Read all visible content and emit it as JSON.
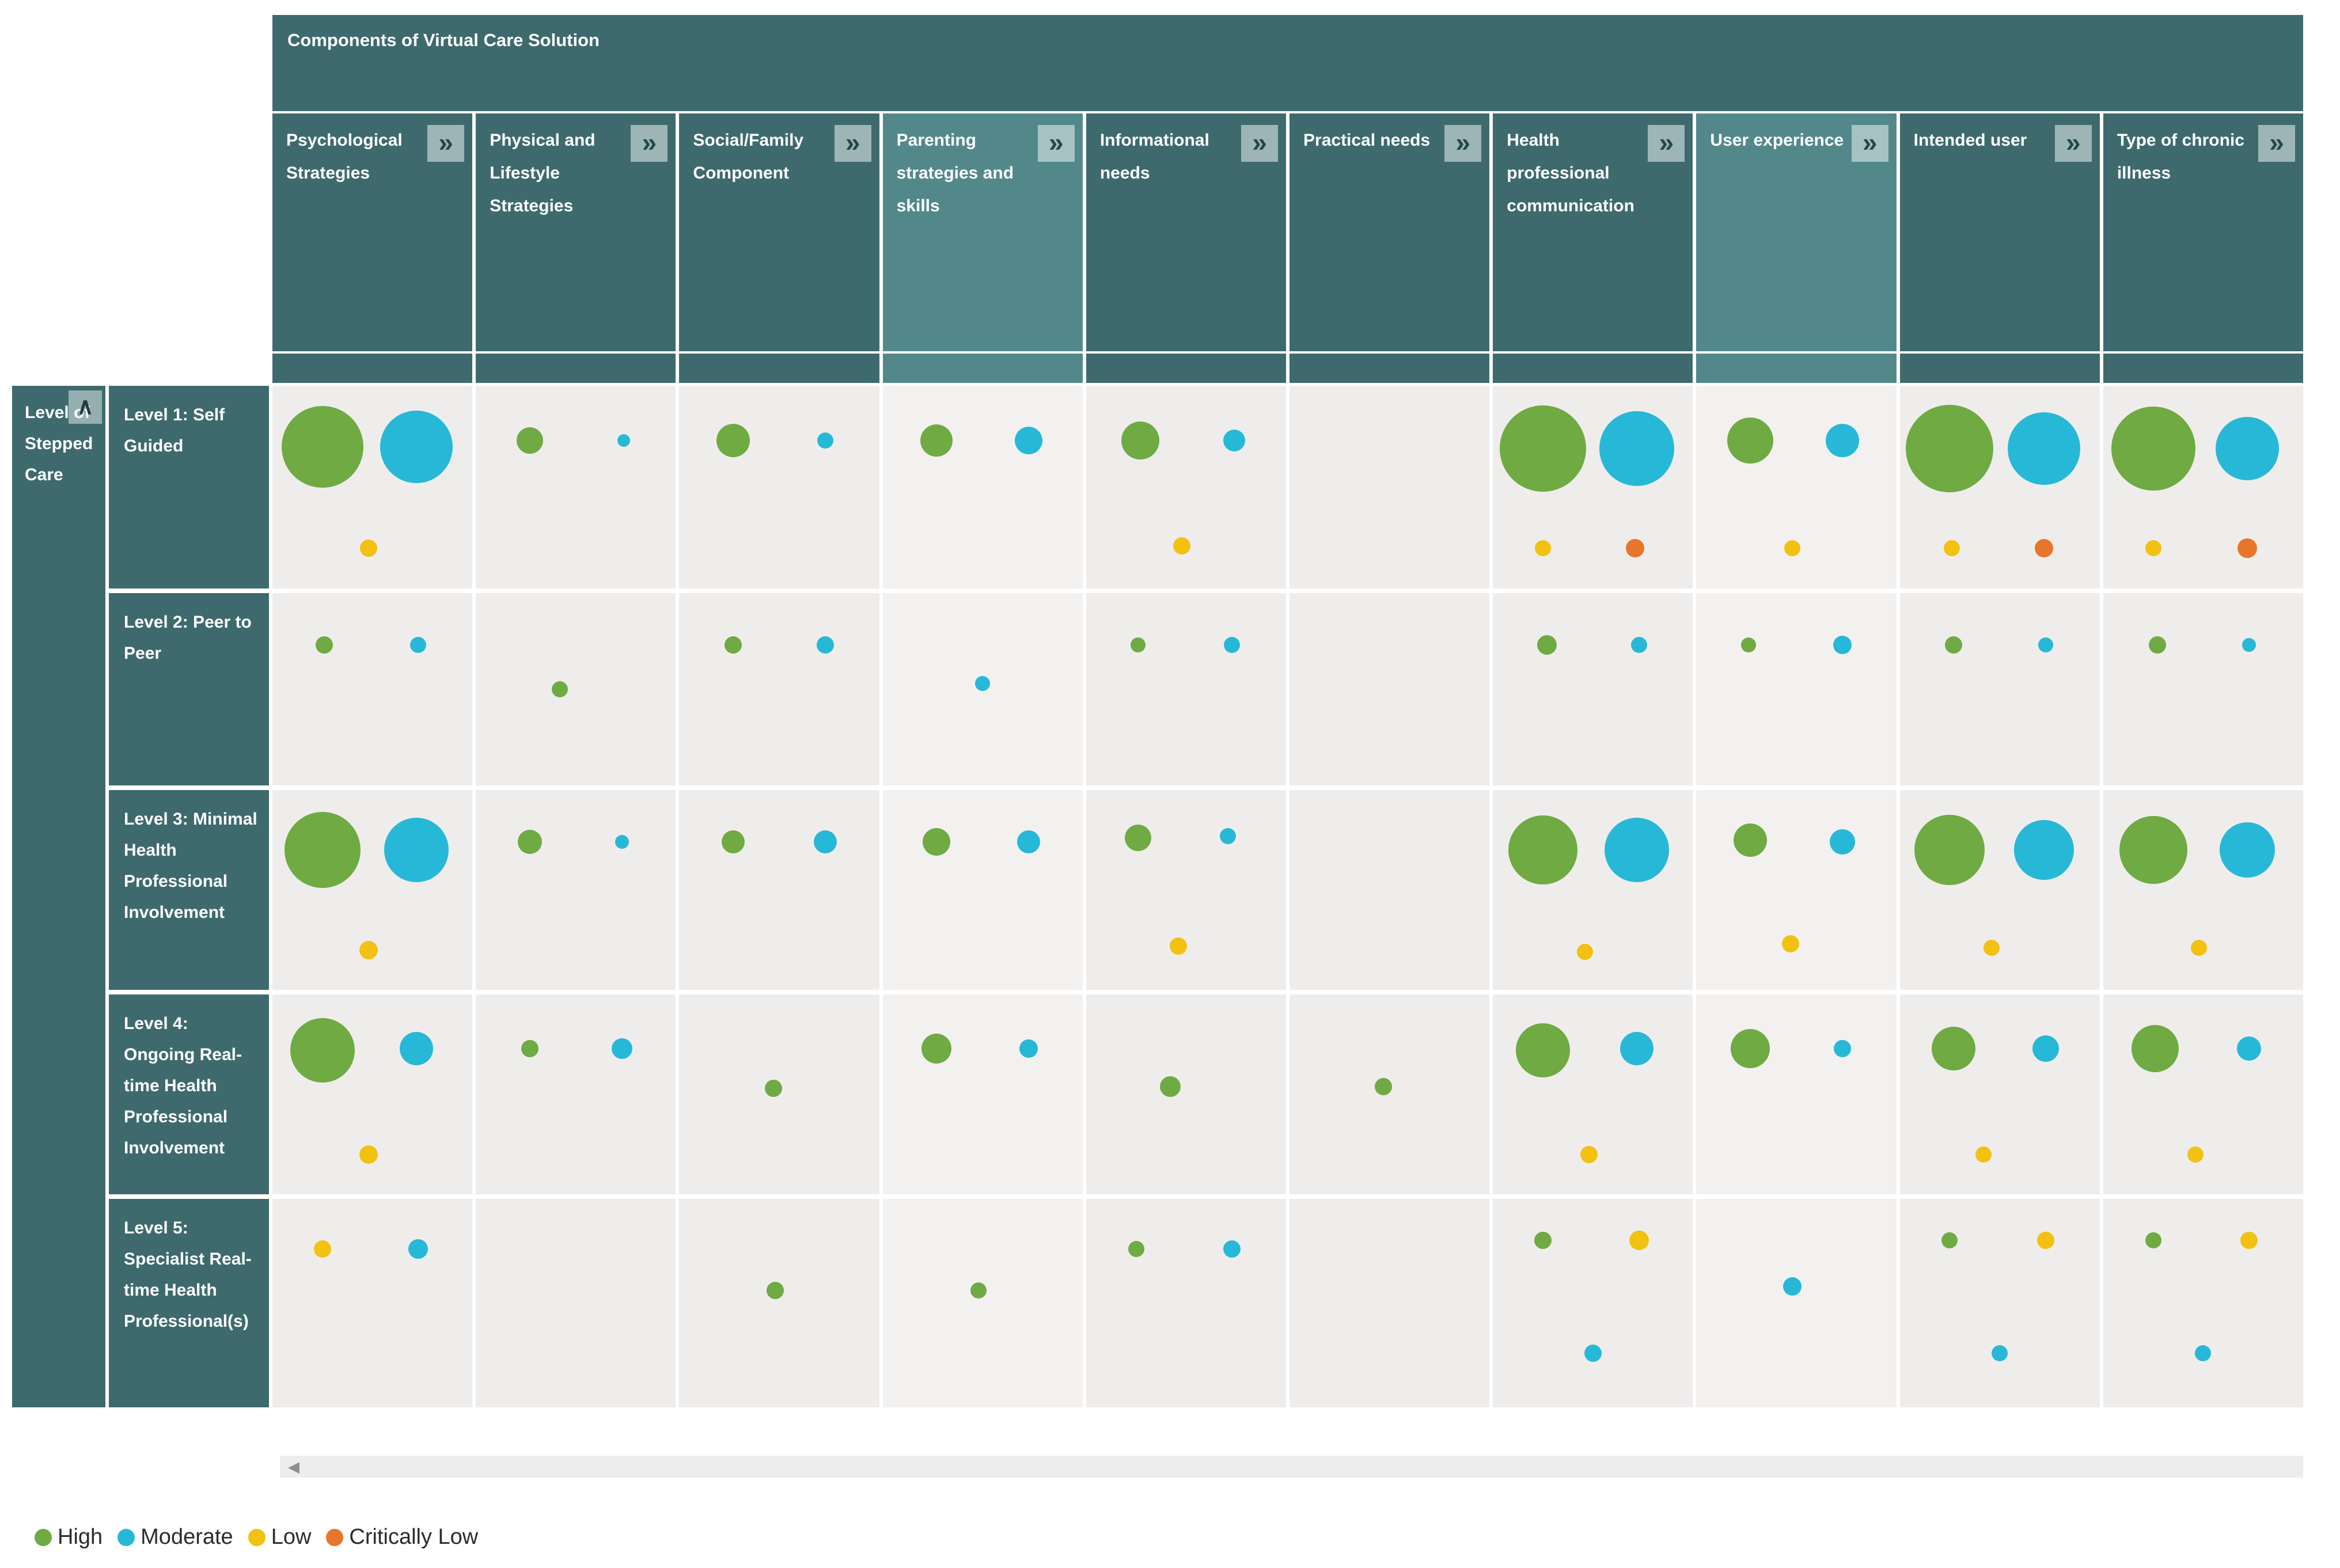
{
  "banner": {
    "title": "Components of Virtual Care Solution"
  },
  "row_axis_title": "Level of Stepped Care",
  "icons": {
    "expand_column": "»",
    "collapse_rows": "∧",
    "scroll_left_arrow": "◀"
  },
  "colors": {
    "high": "#6faa43",
    "moderate": "#27b8d8",
    "low": "#f2c112",
    "critically_low": "#e8752c",
    "header": "#3e6a6d",
    "header_selected": "#53888b",
    "cell": "#efedec",
    "cell_selected": "#f3f1ef"
  },
  "legend": [
    {
      "key": "high",
      "label": "High"
    },
    {
      "key": "moderate",
      "label": "Moderate"
    },
    {
      "key": "low",
      "label": "Low"
    },
    {
      "key": "critically_low",
      "label": "Critically Low"
    }
  ],
  "chart_data": {
    "type": "bubble-matrix",
    "title": "Components of Virtual Care Solution",
    "row_axis": "Level of Stepped Care",
    "legend_position": "bottom-left",
    "size_encoding": "bubble diameter = relative number of solutions; color = evidence rating (High, Moderate, Low, Critically Low)",
    "columns": [
      {
        "label": "Psychological Strategies",
        "selected": false
      },
      {
        "label": "Physical and Lifestyle Strategies",
        "selected": false
      },
      {
        "label": "Social/Family Component",
        "selected": false
      },
      {
        "label": "Parenting strategies and skills",
        "selected": true
      },
      {
        "label": "Informational needs",
        "selected": false
      },
      {
        "label": "Practical needs",
        "selected": false
      },
      {
        "label": "Health professional communication",
        "selected": false
      },
      {
        "label": "User experience",
        "selected": true
      },
      {
        "label": "Intended user",
        "selected": false
      },
      {
        "label": "Type of chronic illness",
        "selected": false
      }
    ],
    "rows": [
      "Level 1: Self Guided",
      "Level 2: Peer to Peer",
      "Level 3: Minimal Health Professional Involvement",
      "Level 4: Ongoing Real-time Health Professional Involvement",
      "Level 5: Specialist Real-time Health Professional(s)"
    ],
    "cells": [
      {
        "row": 0,
        "col": 0,
        "dots": [
          {
            "rating": "high",
            "x": 25,
            "y": 30,
            "d": 142
          },
          {
            "rating": "moderate",
            "x": 72,
            "y": 30,
            "d": 126
          },
          {
            "rating": "low",
            "x": 48,
            "y": 80,
            "d": 30
          }
        ]
      },
      {
        "row": 0,
        "col": 1,
        "dots": [
          {
            "rating": "high",
            "x": 27,
            "y": 27,
            "d": 46
          },
          {
            "rating": "moderate",
            "x": 74,
            "y": 27,
            "d": 22
          }
        ]
      },
      {
        "row": 0,
        "col": 2,
        "dots": [
          {
            "rating": "high",
            "x": 27,
            "y": 27,
            "d": 58
          },
          {
            "rating": "moderate",
            "x": 73,
            "y": 27,
            "d": 28
          }
        ]
      },
      {
        "row": 0,
        "col": 3,
        "dots": [
          {
            "rating": "high",
            "x": 27,
            "y": 27,
            "d": 56
          },
          {
            "rating": "moderate",
            "x": 73,
            "y": 27,
            "d": 48
          }
        ]
      },
      {
        "row": 0,
        "col": 4,
        "dots": [
          {
            "rating": "high",
            "x": 27,
            "y": 27,
            "d": 66
          },
          {
            "rating": "moderate",
            "x": 74,
            "y": 27,
            "d": 38
          },
          {
            "rating": "low",
            "x": 48,
            "y": 79,
            "d": 30
          }
        ]
      },
      {
        "row": 0,
        "col": 6,
        "dots": [
          {
            "rating": "high",
            "x": 25,
            "y": 31,
            "d": 150
          },
          {
            "rating": "moderate",
            "x": 72,
            "y": 31,
            "d": 130
          },
          {
            "rating": "low",
            "x": 25,
            "y": 80,
            "d": 28
          },
          {
            "rating": "critically_low",
            "x": 71,
            "y": 80,
            "d": 32
          }
        ]
      },
      {
        "row": 0,
        "col": 7,
        "dots": [
          {
            "rating": "high",
            "x": 27,
            "y": 27,
            "d": 80
          },
          {
            "rating": "moderate",
            "x": 73,
            "y": 27,
            "d": 58
          },
          {
            "rating": "low",
            "x": 48,
            "y": 80,
            "d": 28
          }
        ]
      },
      {
        "row": 0,
        "col": 8,
        "dots": [
          {
            "rating": "high",
            "x": 25,
            "y": 31,
            "d": 152
          },
          {
            "rating": "moderate",
            "x": 72,
            "y": 31,
            "d": 126
          },
          {
            "rating": "low",
            "x": 26,
            "y": 80,
            "d": 28
          },
          {
            "rating": "critically_low",
            "x": 72,
            "y": 80,
            "d": 32
          }
        ]
      },
      {
        "row": 0,
        "col": 9,
        "dots": [
          {
            "rating": "high",
            "x": 25,
            "y": 31,
            "d": 146
          },
          {
            "rating": "moderate",
            "x": 72,
            "y": 31,
            "d": 110
          },
          {
            "rating": "low",
            "x": 25,
            "y": 80,
            "d": 28
          },
          {
            "rating": "critically_low",
            "x": 72,
            "y": 80,
            "d": 34
          }
        ]
      },
      {
        "row": 1,
        "col": 0,
        "dots": [
          {
            "rating": "high",
            "x": 26,
            "y": 27,
            "d": 30
          },
          {
            "rating": "moderate",
            "x": 73,
            "y": 27,
            "d": 28
          }
        ]
      },
      {
        "row": 1,
        "col": 1,
        "dots": [
          {
            "rating": "high",
            "x": 42,
            "y": 50,
            "d": 28
          }
        ]
      },
      {
        "row": 1,
        "col": 2,
        "dots": [
          {
            "rating": "high",
            "x": 27,
            "y": 27,
            "d": 30
          },
          {
            "rating": "moderate",
            "x": 73,
            "y": 27,
            "d": 30
          }
        ]
      },
      {
        "row": 1,
        "col": 3,
        "dots": [
          {
            "rating": "moderate",
            "x": 50,
            "y": 47,
            "d": 26
          }
        ]
      },
      {
        "row": 1,
        "col": 4,
        "dots": [
          {
            "rating": "high",
            "x": 26,
            "y": 27,
            "d": 26
          },
          {
            "rating": "moderate",
            "x": 73,
            "y": 27,
            "d": 28
          }
        ]
      },
      {
        "row": 1,
        "col": 6,
        "dots": [
          {
            "rating": "high",
            "x": 27,
            "y": 27,
            "d": 34
          },
          {
            "rating": "moderate",
            "x": 73,
            "y": 27,
            "d": 28
          }
        ]
      },
      {
        "row": 1,
        "col": 7,
        "dots": [
          {
            "rating": "high",
            "x": 26,
            "y": 27,
            "d": 26
          },
          {
            "rating": "moderate",
            "x": 73,
            "y": 27,
            "d": 32
          }
        ]
      },
      {
        "row": 1,
        "col": 8,
        "dots": [
          {
            "rating": "high",
            "x": 27,
            "y": 27,
            "d": 30
          },
          {
            "rating": "moderate",
            "x": 73,
            "y": 27,
            "d": 26
          }
        ]
      },
      {
        "row": 1,
        "col": 9,
        "dots": [
          {
            "rating": "high",
            "x": 27,
            "y": 27,
            "d": 30
          },
          {
            "rating": "moderate",
            "x": 73,
            "y": 27,
            "d": 24
          }
        ]
      },
      {
        "row": 2,
        "col": 0,
        "dots": [
          {
            "rating": "high",
            "x": 25,
            "y": 30,
            "d": 132
          },
          {
            "rating": "moderate",
            "x": 72,
            "y": 30,
            "d": 112
          },
          {
            "rating": "low",
            "x": 48,
            "y": 80,
            "d": 32
          }
        ]
      },
      {
        "row": 2,
        "col": 1,
        "dots": [
          {
            "rating": "high",
            "x": 27,
            "y": 26,
            "d": 42
          },
          {
            "rating": "moderate",
            "x": 73,
            "y": 26,
            "d": 24
          }
        ]
      },
      {
        "row": 2,
        "col": 2,
        "dots": [
          {
            "rating": "high",
            "x": 27,
            "y": 26,
            "d": 40
          },
          {
            "rating": "moderate",
            "x": 73,
            "y": 26,
            "d": 40
          }
        ]
      },
      {
        "row": 2,
        "col": 3,
        "dots": [
          {
            "rating": "high",
            "x": 27,
            "y": 26,
            "d": 48
          },
          {
            "rating": "moderate",
            "x": 73,
            "y": 26,
            "d": 40
          }
        ]
      },
      {
        "row": 2,
        "col": 4,
        "dots": [
          {
            "rating": "high",
            "x": 26,
            "y": 24,
            "d": 46
          },
          {
            "rating": "moderate",
            "x": 71,
            "y": 23,
            "d": 28
          },
          {
            "rating": "low",
            "x": 46,
            "y": 78,
            "d": 30
          }
        ]
      },
      {
        "row": 2,
        "col": 6,
        "dots": [
          {
            "rating": "high",
            "x": 25,
            "y": 30,
            "d": 120
          },
          {
            "rating": "moderate",
            "x": 72,
            "y": 30,
            "d": 112
          },
          {
            "rating": "low",
            "x": 46,
            "y": 81,
            "d": 28
          }
        ]
      },
      {
        "row": 2,
        "col": 7,
        "dots": [
          {
            "rating": "high",
            "x": 27,
            "y": 25,
            "d": 58
          },
          {
            "rating": "moderate",
            "x": 73,
            "y": 26,
            "d": 44
          },
          {
            "rating": "low",
            "x": 47,
            "y": 77,
            "d": 30
          }
        ]
      },
      {
        "row": 2,
        "col": 8,
        "dots": [
          {
            "rating": "high",
            "x": 25,
            "y": 30,
            "d": 122
          },
          {
            "rating": "moderate",
            "x": 72,
            "y": 30,
            "d": 104
          },
          {
            "rating": "low",
            "x": 46,
            "y": 79,
            "d": 28
          }
        ]
      },
      {
        "row": 2,
        "col": 9,
        "dots": [
          {
            "rating": "high",
            "x": 25,
            "y": 30,
            "d": 118
          },
          {
            "rating": "moderate",
            "x": 72,
            "y": 30,
            "d": 96
          },
          {
            "rating": "low",
            "x": 48,
            "y": 79,
            "d": 28
          }
        ]
      },
      {
        "row": 3,
        "col": 0,
        "dots": [
          {
            "rating": "high",
            "x": 25,
            "y": 28,
            "d": 112
          },
          {
            "rating": "moderate",
            "x": 72,
            "y": 27,
            "d": 58
          },
          {
            "rating": "low",
            "x": 48,
            "y": 80,
            "d": 32
          }
        ]
      },
      {
        "row": 3,
        "col": 1,
        "dots": [
          {
            "rating": "high",
            "x": 27,
            "y": 27,
            "d": 30
          },
          {
            "rating": "moderate",
            "x": 73,
            "y": 27,
            "d": 36
          }
        ]
      },
      {
        "row": 3,
        "col": 2,
        "dots": [
          {
            "rating": "high",
            "x": 47,
            "y": 47,
            "d": 30
          }
        ]
      },
      {
        "row": 3,
        "col": 3,
        "dots": [
          {
            "rating": "high",
            "x": 27,
            "y": 27,
            "d": 52
          },
          {
            "rating": "moderate",
            "x": 73,
            "y": 27,
            "d": 32
          }
        ]
      },
      {
        "row": 3,
        "col": 4,
        "dots": [
          {
            "rating": "high",
            "x": 42,
            "y": 46,
            "d": 36
          }
        ]
      },
      {
        "row": 3,
        "col": 5,
        "dots": [
          {
            "rating": "high",
            "x": 47,
            "y": 46,
            "d": 30
          }
        ]
      },
      {
        "row": 3,
        "col": 6,
        "dots": [
          {
            "rating": "high",
            "x": 25,
            "y": 28,
            "d": 94
          },
          {
            "rating": "moderate",
            "x": 72,
            "y": 27,
            "d": 58
          },
          {
            "rating": "low",
            "x": 48,
            "y": 80,
            "d": 30
          }
        ]
      },
      {
        "row": 3,
        "col": 7,
        "dots": [
          {
            "rating": "high",
            "x": 27,
            "y": 27,
            "d": 68
          },
          {
            "rating": "moderate",
            "x": 73,
            "y": 27,
            "d": 30
          }
        ]
      },
      {
        "row": 3,
        "col": 8,
        "dots": [
          {
            "rating": "high",
            "x": 27,
            "y": 27,
            "d": 76
          },
          {
            "rating": "moderate",
            "x": 73,
            "y": 27,
            "d": 46
          },
          {
            "rating": "low",
            "x": 42,
            "y": 80,
            "d": 28
          }
        ]
      },
      {
        "row": 3,
        "col": 9,
        "dots": [
          {
            "rating": "high",
            "x": 26,
            "y": 27,
            "d": 82
          },
          {
            "rating": "moderate",
            "x": 73,
            "y": 27,
            "d": 42
          },
          {
            "rating": "low",
            "x": 46,
            "y": 80,
            "d": 28
          }
        ]
      },
      {
        "row": 4,
        "col": 0,
        "dots": [
          {
            "rating": "low",
            "x": 25,
            "y": 24,
            "d": 30
          },
          {
            "rating": "moderate",
            "x": 73,
            "y": 24,
            "d": 34
          }
        ]
      },
      {
        "row": 4,
        "col": 2,
        "dots": [
          {
            "rating": "high",
            "x": 48,
            "y": 44,
            "d": 30
          }
        ]
      },
      {
        "row": 4,
        "col": 3,
        "dots": [
          {
            "rating": "high",
            "x": 48,
            "y": 44,
            "d": 28
          }
        ]
      },
      {
        "row": 4,
        "col": 4,
        "dots": [
          {
            "rating": "high",
            "x": 25,
            "y": 24,
            "d": 28
          },
          {
            "rating": "moderate",
            "x": 73,
            "y": 24,
            "d": 30
          }
        ]
      },
      {
        "row": 4,
        "col": 6,
        "dots": [
          {
            "rating": "high",
            "x": 25,
            "y": 20,
            "d": 30
          },
          {
            "rating": "low",
            "x": 73,
            "y": 20,
            "d": 34
          },
          {
            "rating": "moderate",
            "x": 50,
            "y": 74,
            "d": 30
          }
        ]
      },
      {
        "row": 4,
        "col": 7,
        "dots": [
          {
            "rating": "moderate",
            "x": 48,
            "y": 42,
            "d": 32
          }
        ]
      },
      {
        "row": 4,
        "col": 8,
        "dots": [
          {
            "rating": "high",
            "x": 25,
            "y": 20,
            "d": 28
          },
          {
            "rating": "low",
            "x": 73,
            "y": 20,
            "d": 30
          },
          {
            "rating": "moderate",
            "x": 50,
            "y": 74,
            "d": 28
          }
        ]
      },
      {
        "row": 4,
        "col": 9,
        "dots": [
          {
            "rating": "high",
            "x": 25,
            "y": 20,
            "d": 28
          },
          {
            "rating": "low",
            "x": 73,
            "y": 20,
            "d": 30
          },
          {
            "rating": "moderate",
            "x": 50,
            "y": 74,
            "d": 28
          }
        ]
      }
    ]
  }
}
